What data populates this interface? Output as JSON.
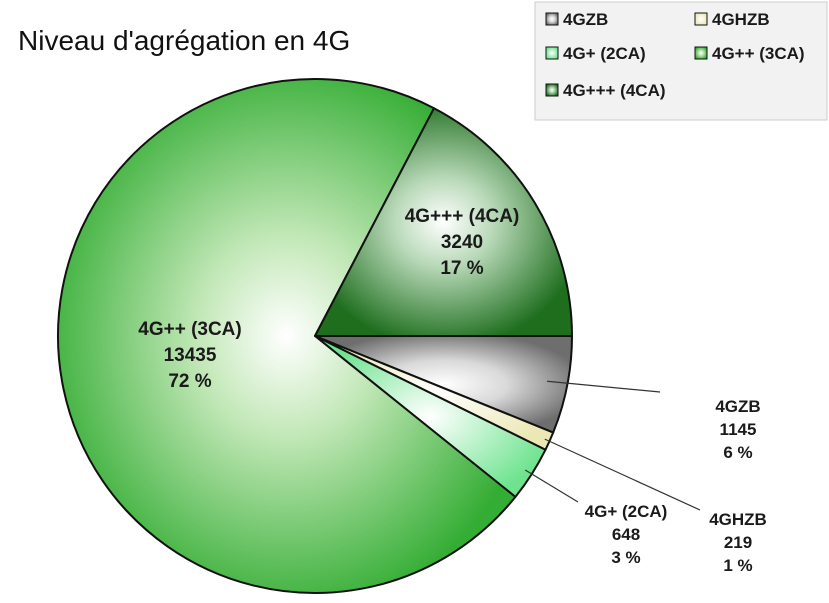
{
  "chart_data": {
    "type": "pie",
    "title": "Niveau d'agrégation en 4G",
    "legend_position": "top-right",
    "categories": [
      "4GZB",
      "4GHZB",
      "4G+ (2CA)",
      "4G++ (3CA)",
      "4G+++ (4CA)"
    ],
    "values": [
      1145,
      219,
      648,
      13435,
      3240
    ],
    "percent_labels": [
      "6 %",
      "1 %",
      "3 %",
      "72 %",
      "17 %"
    ],
    "colors": {
      "4GZB": "#8c8c8c",
      "4GHZB": "#f2f0c4",
      "4G+ (2CA)": "#7ce89a",
      "4G++ (3CA)": "#3db83d",
      "4G+++ (4CA)": "#2e7d2e"
    }
  }
}
